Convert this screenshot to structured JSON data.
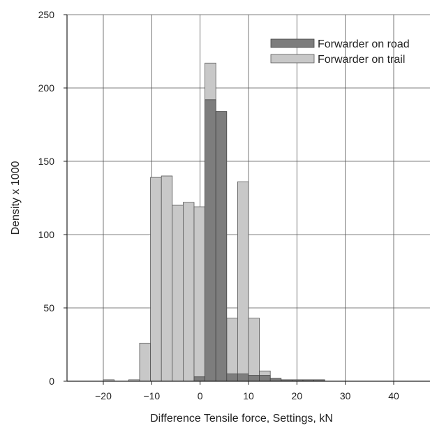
{
  "chart_data": {
    "type": "bar",
    "title": "",
    "xlabel": "Difference Tensile force, Settings, kN",
    "ylabel": "Density x 1000",
    "xlim": [
      -27.5,
      47.5
    ],
    "ylim": [
      0,
      250
    ],
    "xticks": [
      -20,
      -10,
      0,
      10,
      20,
      30,
      40
    ],
    "yticks": [
      0,
      50,
      100,
      150,
      200,
      250
    ],
    "xtick_labels": [
      "−20",
      "−10",
      "0",
      "10",
      "20",
      "30",
      "40"
    ],
    "ytick_labels": [
      "0",
      "50",
      "100",
      "150",
      "200",
      "250"
    ],
    "grid": true,
    "legend_position": "top-right",
    "bin_width": 2.25,
    "series": [
      {
        "name": "Forwarder on trail",
        "color": "#c8c8c8",
        "edge_color": "#555555",
        "bins": [
          {
            "x0": -20,
            "value": 1
          },
          {
            "x0": -14.75,
            "value": 1
          },
          {
            "x0": -12.5,
            "value": 26
          },
          {
            "x0": -10.25,
            "value": 139
          },
          {
            "x0": -8,
            "value": 140
          },
          {
            "x0": -5.75,
            "value": 120
          },
          {
            "x0": -3.5,
            "value": 122
          },
          {
            "x0": -1.25,
            "value": 119
          },
          {
            "x0": 1,
            "value": 217
          },
          {
            "x0": 5.5,
            "value": 43
          },
          {
            "x0": 7.75,
            "value": 136
          },
          {
            "x0": 10,
            "value": 43
          },
          {
            "x0": 12.25,
            "value": 7
          }
        ]
      },
      {
        "name": "Forwarder on road",
        "color": "#7d7d7d",
        "edge_color": "#444444",
        "bins": [
          {
            "x0": -1.25,
            "value": 3
          },
          {
            "x0": 1,
            "value": 192
          },
          {
            "x0": 3.25,
            "value": 184
          },
          {
            "x0": 5.5,
            "value": 5
          },
          {
            "x0": 7.75,
            "value": 5
          },
          {
            "x0": 10,
            "value": 4
          },
          {
            "x0": 12.25,
            "value": 4
          },
          {
            "x0": 14.5,
            "value": 2
          },
          {
            "x0": 16.75,
            "value": 1
          },
          {
            "x0": 19,
            "value": 1
          },
          {
            "x0": 21.25,
            "value": 1
          },
          {
            "x0": 23.5,
            "value": 1
          }
        ]
      }
    ],
    "legend_order": [
      "Forwarder on road",
      "Forwarder on trail"
    ]
  }
}
